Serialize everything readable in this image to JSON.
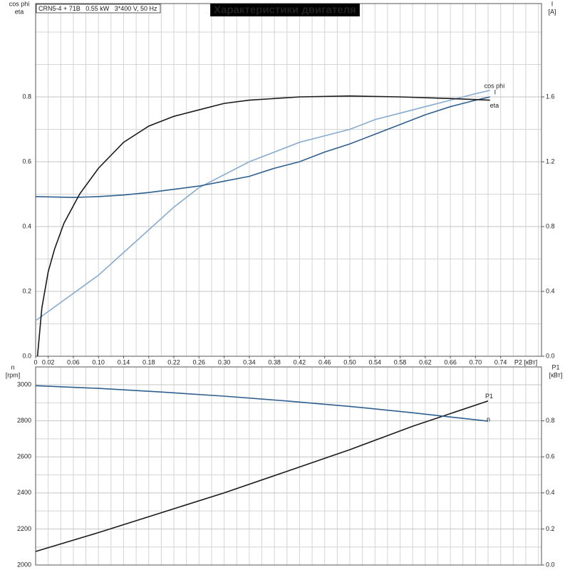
{
  "chart_data": [
    {
      "type": "line",
      "title": "Характеристики двигателя",
      "subtitle": "CRN5-4 + 71B   0.55 kW   3*400 V, 50 Hz",
      "y_label": [
        "cos phi",
        "eta"
      ],
      "y2_label": [
        "I",
        "[A]"
      ],
      "x_label": "P2 [кВт]",
      "xlim": [
        0,
        0.805
      ],
      "ylim": [
        0,
        1.088
      ],
      "y2lim": [
        0,
        2.176
      ],
      "xticks": [
        0,
        0.02,
        0.06,
        {
          "value": 0.1,
          "label": "0.10"
        },
        0.14,
        0.18,
        0.22,
        0.26,
        {
          "value": 0.3,
          "label": "0.30"
        },
        0.34,
        0.38,
        0.42,
        0.46,
        {
          "value": 0.5,
          "label": "0.50"
        },
        0.54,
        0.58,
        0.62,
        0.66,
        {
          "value": 0.7,
          "label": "0.70"
        },
        0.74
      ],
      "x_minor_ticks": [
        0.02,
        0.04,
        0.06,
        0.08,
        0.1,
        0.12,
        0.14,
        0.16,
        0.18,
        0.2,
        0.22,
        0.24,
        0.26,
        0.28,
        0.3,
        0.32,
        0.34,
        0.36,
        0.38,
        0.4,
        0.42,
        0.44,
        0.46,
        0.48,
        0.5,
        0.52,
        0.54,
        0.56,
        0.58,
        0.6,
        0.62,
        0.64,
        0.66,
        0.68,
        0.7,
        0.72,
        0.74,
        0.76,
        0.78,
        0.8
      ],
      "yticks": [
        {
          "value": 0,
          "label": "0.0"
        },
        0.2,
        0.4,
        0.6,
        0.8
      ],
      "y_minor_ticks": [
        0.1,
        0.3,
        0.5,
        0.7,
        0.9,
        1.0
      ],
      "y2ticks": [
        {
          "value": 0,
          "label": "0.0"
        },
        0.4,
        0.8,
        1.2,
        1.6
      ],
      "grid": true,
      "series": [
        {
          "name": "cos phi",
          "color": "#86aad0",
          "x": [
            0,
            0.05,
            0.1,
            0.14,
            0.18,
            0.22,
            0.26,
            0.3,
            0.34,
            0.38,
            0.42,
            0.46,
            0.5,
            0.54,
            0.58,
            0.62,
            0.66,
            0.7,
            0.723
          ],
          "values": [
            0.11,
            0.18,
            0.25,
            0.32,
            0.39,
            0.46,
            0.52,
            0.56,
            0.6,
            0.63,
            0.66,
            0.68,
            0.7,
            0.73,
            0.75,
            0.77,
            0.79,
            0.81,
            0.82
          ]
        },
        {
          "name": "I",
          "color": "#2f5f8f",
          "axis": "y2",
          "x": [
            0,
            0.06,
            0.1,
            0.14,
            0.18,
            0.22,
            0.26,
            0.3,
            0.34,
            0.38,
            0.42,
            0.46,
            0.5,
            0.54,
            0.58,
            0.62,
            0.66,
            0.7,
            0.723
          ],
          "values": [
            0.985,
            0.98,
            0.985,
            0.995,
            1.01,
            1.03,
            1.05,
            1.08,
            1.11,
            1.16,
            1.2,
            1.26,
            1.31,
            1.37,
            1.43,
            1.49,
            1.54,
            1.58,
            1.6
          ]
        },
        {
          "name": "eta",
          "color": "#1a1a1a",
          "x": [
            0.003,
            0.01,
            0.02,
            0.03,
            0.045,
            0.07,
            0.1,
            0.14,
            0.18,
            0.22,
            0.26,
            0.3,
            0.34,
            0.42,
            0.5,
            0.58,
            0.66,
            0.723
          ],
          "values": [
            0,
            0.15,
            0.26,
            0.33,
            0.41,
            0.5,
            0.58,
            0.66,
            0.71,
            0.74,
            0.76,
            0.78,
            0.79,
            0.8,
            0.803,
            0.8,
            0.795,
            0.79
          ]
        }
      ]
    },
    {
      "type": "line",
      "y_label": [
        "n",
        "[rpm]"
      ],
      "y2_label": [
        "P1",
        "[кВт]"
      ],
      "xlim": [
        0,
        0.805
      ],
      "ylim": [
        2000,
        3099
      ],
      "y2lim": [
        0,
        1.099
      ],
      "x_minor_ticks": [
        0.02,
        0.04,
        0.06,
        0.08,
        0.1,
        0.12,
        0.14,
        0.16,
        0.18,
        0.2,
        0.22,
        0.24,
        0.26,
        0.28,
        0.3,
        0.32,
        0.34,
        0.36,
        0.38,
        0.4,
        0.42,
        0.44,
        0.46,
        0.48,
        0.5,
        0.52,
        0.54,
        0.56,
        0.58,
        0.6,
        0.62,
        0.64,
        0.66,
        0.68,
        0.7,
        0.72,
        0.74,
        0.76,
        0.78,
        0.8
      ],
      "yticks": [
        2000,
        2200,
        2400,
        2600,
        2800,
        3000
      ],
      "y_minor_ticks": [
        2100,
        2300,
        2500,
        2700,
        2900
      ],
      "y2ticks": [
        {
          "value": 0,
          "label": "0.0"
        },
        0.2,
        0.4,
        0.6,
        0.8
      ],
      "grid": true,
      "series": [
        {
          "name": "P1",
          "color": "#1a1a1a",
          "axis": "y2",
          "x": [
            0,
            0.1,
            0.2,
            0.3,
            0.4,
            0.5,
            0.6,
            0.72
          ],
          "values": [
            0.075,
            0.18,
            0.29,
            0.4,
            0.52,
            0.64,
            0.77,
            0.91
          ]
        },
        {
          "name": "n",
          "color": "#2f5f8f",
          "x": [
            0,
            0.1,
            0.2,
            0.3,
            0.4,
            0.5,
            0.6,
            0.72
          ],
          "values": [
            2995,
            2980,
            2960,
            2937,
            2910,
            2880,
            2845,
            2798
          ]
        }
      ]
    }
  ]
}
